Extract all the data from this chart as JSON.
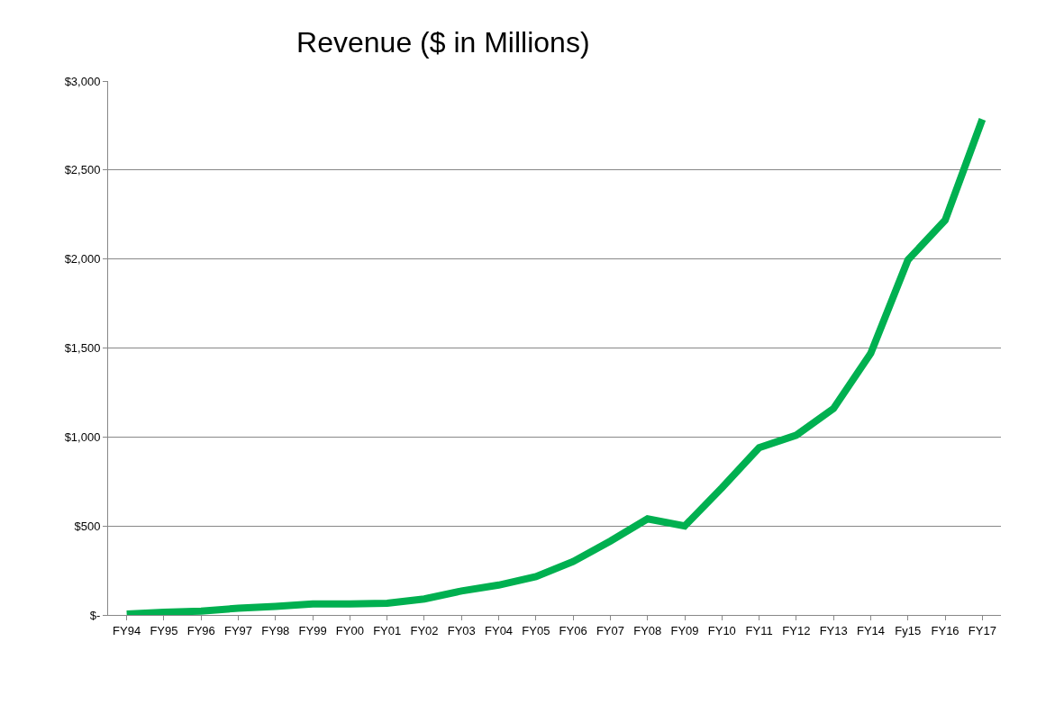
{
  "chart_data": {
    "type": "line",
    "title": "Revenue ($ in Millions)",
    "categories": [
      "FY94",
      "FY95",
      "FY96",
      "FY97",
      "FY98",
      "FY99",
      "FY00",
      "FY01",
      "FY02",
      "FY03",
      "FY04",
      "FY05",
      "FY06",
      "FY07",
      "FY08",
      "FY09",
      "FY10",
      "FY11",
      "FY12",
      "FY13",
      "FY14",
      "Fy15",
      "FY16",
      "FY17"
    ],
    "series": [
      {
        "color": "#00b050",
        "values": [
          5,
          15,
          22,
          38,
          48,
          62,
          62,
          66,
          90,
          135,
          168,
          215,
          300,
          415,
          540,
          500,
          715,
          940,
          1010,
          1160,
          1470,
          1995,
          2218,
          2785
        ]
      }
    ],
    "ylim": [
      0,
      3000
    ],
    "yticks": [
      {
        "value": 0,
        "label": "$-"
      },
      {
        "value": 500,
        "label": "$500"
      },
      {
        "value": 1000,
        "label": "$1,000"
      },
      {
        "value": 1500,
        "label": "$1,500"
      },
      {
        "value": 2000,
        "label": "$2,000"
      },
      {
        "value": 2500,
        "label": "$2,500"
      },
      {
        "value": 3000,
        "label": "$3,000"
      }
    ],
    "grid": "y",
    "marker": "none",
    "line_style": "solid"
  }
}
